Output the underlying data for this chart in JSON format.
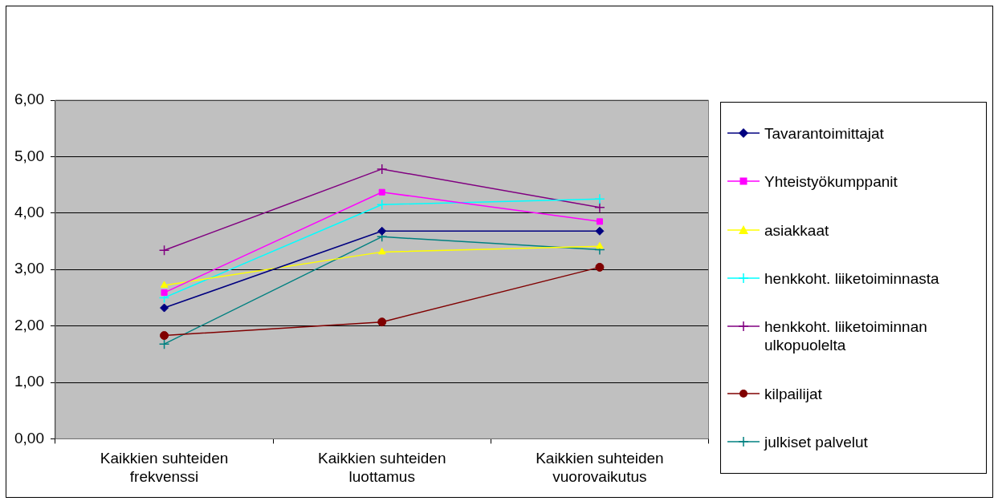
{
  "chart_data": {
    "type": "line",
    "categories": [
      "Kaikkien suhteiden frekvenssi",
      "Kaikkien suhteiden luottamus",
      "Kaikkien suhteiden vuorovaikutus"
    ],
    "series": [
      {
        "name": "Tavarantoimittajat",
        "color": "#000080",
        "marker": "diamond",
        "values": [
          2.32,
          3.68,
          3.68
        ]
      },
      {
        "name": "Yhteistyökumppanit",
        "color": "#ff00ff",
        "marker": "square",
        "values": [
          2.59,
          4.37,
          3.85
        ]
      },
      {
        "name": "asiakkaat",
        "color": "#ffff00",
        "marker": "triangle",
        "values": [
          2.72,
          3.31,
          3.41
        ]
      },
      {
        "name": "henkkoht. liiketoiminnasta",
        "color": "#00ffff",
        "marker": "cross",
        "values": [
          2.5,
          4.15,
          4.25
        ]
      },
      {
        "name": "henkkoht. liiketoiminnan ulkopuolelta",
        "color": "#800080",
        "marker": "cross",
        "values": [
          3.34,
          4.78,
          4.1
        ]
      },
      {
        "name": "kilpailijat",
        "color": "#800000",
        "marker": "circle",
        "values": [
          1.83,
          2.07,
          3.04
        ]
      },
      {
        "name": "julkiset palvelut",
        "color": "#008080",
        "marker": "cross",
        "values": [
          1.68,
          3.58,
          3.35
        ]
      }
    ],
    "ylim": [
      0,
      6
    ],
    "yticks": [
      {
        "value": 0,
        "label": "0,00"
      },
      {
        "value": 1,
        "label": "1,00"
      },
      {
        "value": 2,
        "label": "2,00"
      },
      {
        "value": 3,
        "label": "3,00"
      },
      {
        "value": 4,
        "label": "4,00"
      },
      {
        "value": 5,
        "label": "5,00"
      },
      {
        "value": 6,
        "label": "6,00"
      }
    ],
    "grid": "y",
    "legend": "right",
    "line_style": "solid"
  }
}
